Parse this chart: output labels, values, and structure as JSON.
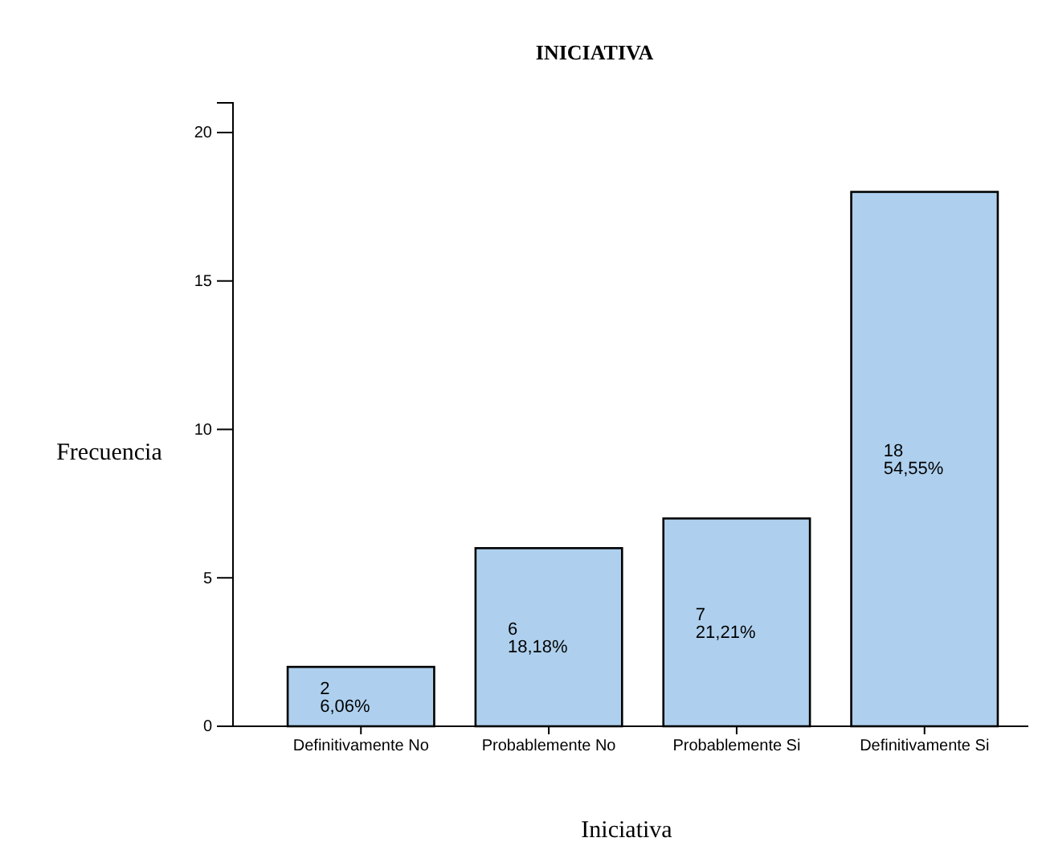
{
  "chart_data": {
    "type": "bar",
    "title": "INICIATIVA",
    "xlabel": "Iniciativa",
    "ylabel": "Frecuencia",
    "categories": [
      "Definitivamente No",
      "Probablemente No",
      "Probablemente Si",
      "Definitivamente Si"
    ],
    "values": [
      2,
      6,
      7,
      18
    ],
    "color": "#aed0ee",
    "value_labels": [
      "2\n6,06%",
      "6\n18,18%",
      "7\n21,21%",
      "18\n54,55%"
    ],
    "ylim": [
      0,
      21
    ],
    "yticks": [
      0,
      5,
      10,
      15,
      20
    ],
    "grid": false
  }
}
